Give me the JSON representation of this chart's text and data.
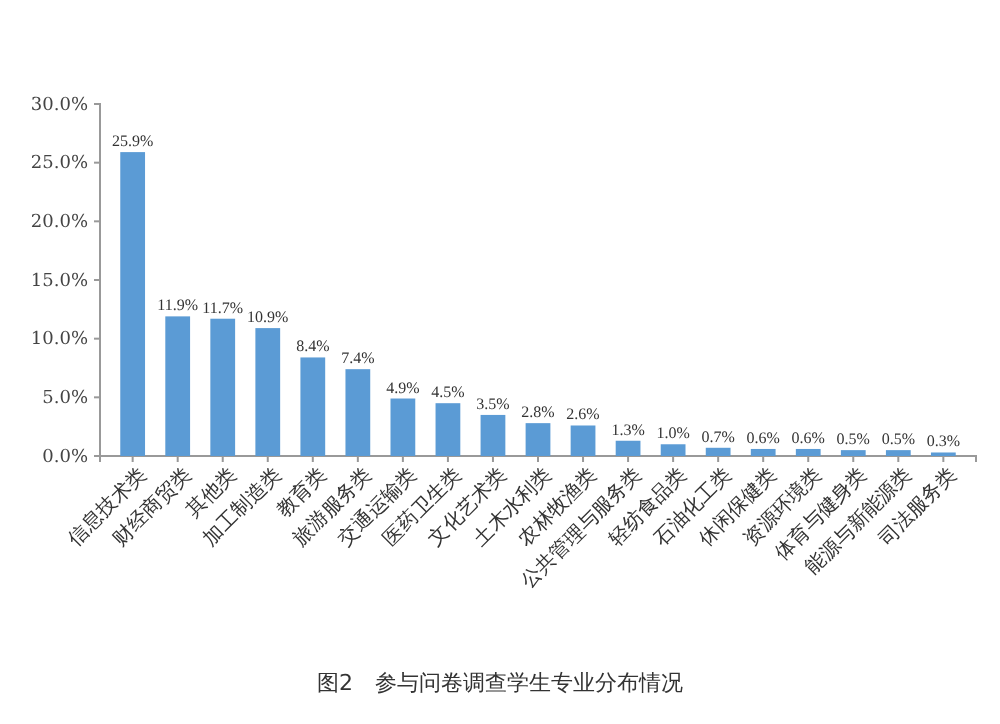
{
  "chart_data": {
    "type": "bar",
    "categories": [
      "信息技术类",
      "财经商贸类",
      "其他类",
      "加工制造类",
      "教育类",
      "旅游服务类",
      "交通运输类",
      "医药卫生类",
      "文化艺术类",
      "土木水利类",
      "农林牧渔类",
      "公共管理与服务类",
      "轻纺食品类",
      "石油化工类",
      "休闲保健类",
      "资源环境类",
      "体育与健身类",
      "能源与新能源类",
      "司法服务类"
    ],
    "values": [
      25.9,
      11.9,
      11.7,
      10.9,
      8.4,
      7.4,
      4.9,
      4.5,
      3.5,
      2.8,
      2.6,
      1.3,
      1.0,
      0.7,
      0.6,
      0.6,
      0.5,
      0.5,
      0.3
    ],
    "value_labels": [
      "25.9%",
      "11.9%",
      "11.7%",
      "10.9%",
      "8.4%",
      "7.4%",
      "4.9%",
      "4.5%",
      "3.5%",
      "2.8%",
      "2.6%",
      "1.3%",
      "1.0%",
      "0.7%",
      "0.6%",
      "0.6%",
      "0.5%",
      "0.5%",
      "0.3%"
    ],
    "color": "#5b9bd5",
    "ylim": [
      0,
      30
    ],
    "yticks": [
      {
        "value": 0,
        "label": "0.0%"
      },
      {
        "value": 5,
        "label": "5.0%"
      },
      {
        "value": 10,
        "label": "10.0%"
      },
      {
        "value": 15,
        "label": "15.0%"
      },
      {
        "value": 20,
        "label": "20.0%"
      },
      {
        "value": 25,
        "label": "25.0%"
      },
      {
        "value": 30,
        "label": "30.0%"
      }
    ],
    "grid": false,
    "annotations": [
      "图2　参与问卷调查学生专业分布情况"
    ]
  }
}
